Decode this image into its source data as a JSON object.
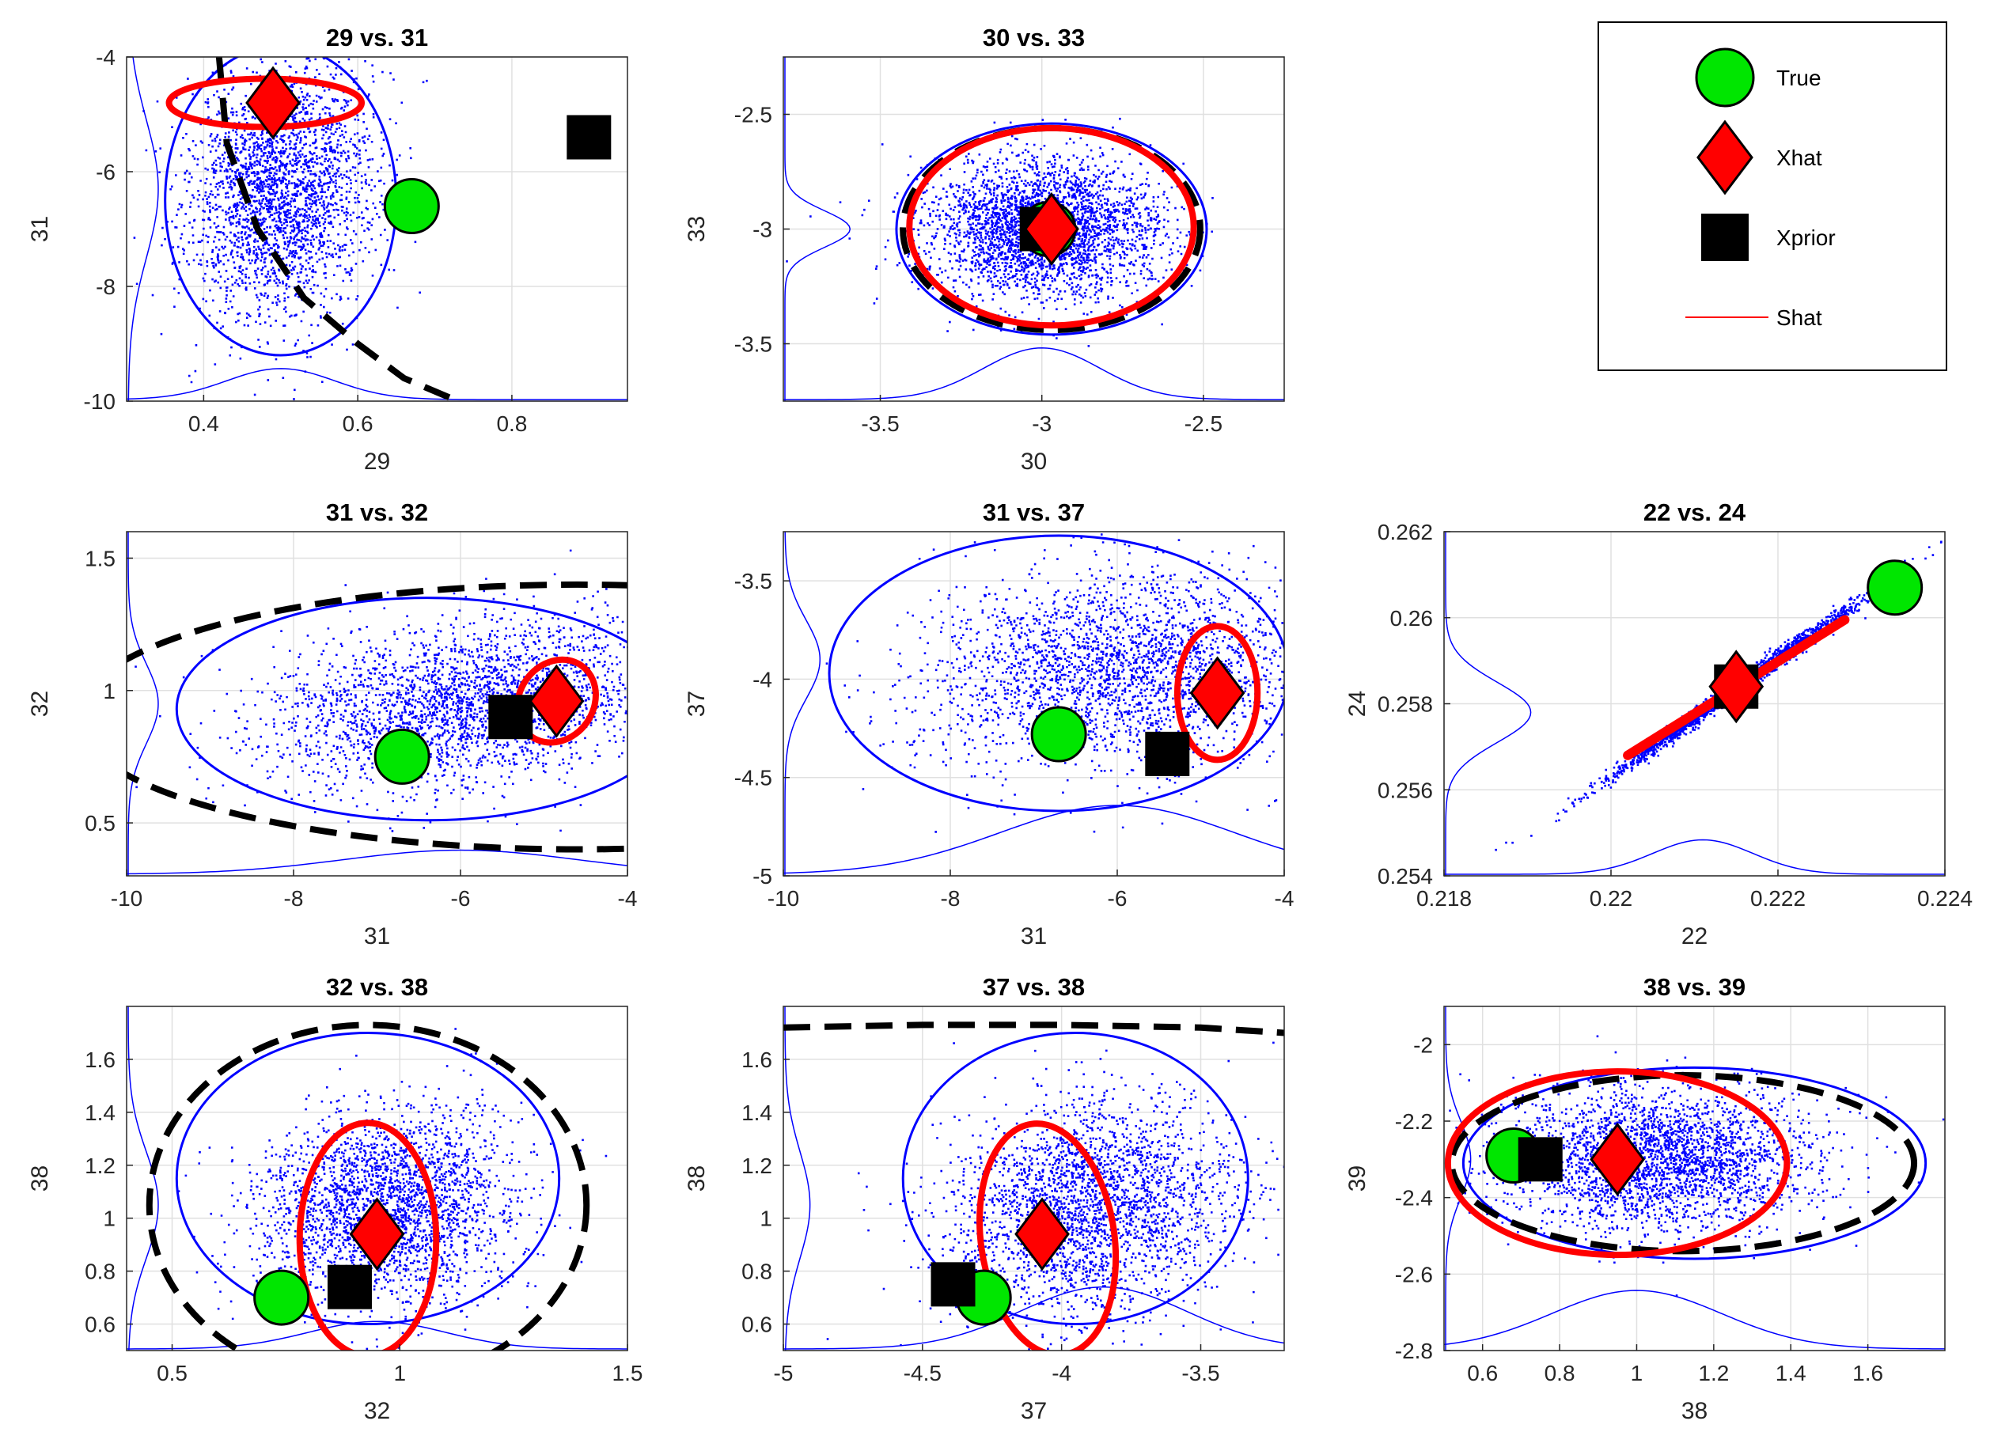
{
  "colors": {
    "true_marker": "#00e600",
    "xhat_marker": "#ff0000",
    "xprior_marker": "#000000",
    "scatter": "#0000ff",
    "shat": "#ff0000",
    "prior_contour": "#000000",
    "grid": "#e0e0e0"
  },
  "legend": {
    "entries": [
      {
        "label": "True",
        "marker": "circle"
      },
      {
        "label": "Xhat",
        "marker": "diamond"
      },
      {
        "label": "Xprior",
        "marker": "square"
      },
      {
        "label": "Shat",
        "marker": "line"
      }
    ]
  },
  "chart_data": [
    {
      "type": "scatter",
      "title": "29 vs. 31",
      "xlabel": "29",
      "ylabel": "31",
      "xlim": [
        0.3,
        0.95
      ],
      "ylim": [
        -10,
        -4
      ],
      "xticks": [
        0.4,
        0.6,
        0.8
      ],
      "xticklabels": [
        "0.4",
        "0.6",
        "0.8"
      ],
      "yticks": [
        -10,
        -8,
        -6,
        -4
      ],
      "yticklabels": [
        "-10",
        "-8",
        "-6",
        "-4"
      ],
      "grid": true,
      "points": {
        "true": [
          0.67,
          -6.6
        ],
        "xhat": [
          0.49,
          -4.8
        ],
        "xprior": [
          0.9,
          -5.4
        ]
      },
      "cloud": {
        "center": [
          0.5,
          -6.3
        ],
        "sd": [
          0.06,
          1.1
        ],
        "rho": 0.1,
        "n": 2600
      },
      "shat_ellipse": {
        "center": [
          0.48,
          -4.8
        ],
        "rx": 0.125,
        "ry": 0.42,
        "angle_deg": 0
      },
      "scatter_contour": {
        "center": [
          0.5,
          -6.5
        ],
        "rx": 0.15,
        "ry": 2.7,
        "angle_deg": 0
      },
      "prior_contour": {
        "shape": "curve",
        "x": [
          0.42,
          0.43,
          0.47,
          0.53,
          0.6,
          0.66,
          0.73
        ],
        "y": [
          -4.0,
          -5.5,
          -7.0,
          -8.2,
          -9.0,
          -9.6,
          -10.0
        ]
      },
      "x_marginal": {
        "center": 0.5,
        "sd": 0.07,
        "height": 0.09
      },
      "y_marginal": {
        "center": -6.3,
        "sd": 1.2,
        "height": 0.06
      }
    },
    {
      "type": "scatter",
      "title": "30 vs. 33",
      "xlabel": "30",
      "ylabel": "33",
      "xlim": [
        -3.8,
        -2.25
      ],
      "ylim": [
        -3.75,
        -2.25
      ],
      "xticks": [
        -3.5,
        -3,
        -2.5
      ],
      "xticklabels": [
        "-3.5",
        "-3",
        "-2.5"
      ],
      "yticks": [
        -3.5,
        -3,
        -2.5
      ],
      "yticklabels": [
        "-3.5",
        "-3",
        "-2.5"
      ],
      "grid": true,
      "points": {
        "true": [
          -2.98,
          -3.0
        ],
        "xhat": [
          -2.97,
          -3.0
        ],
        "xprior": [
          -3.0,
          -3.0
        ]
      },
      "cloud": {
        "center": [
          -3.0,
          -3.0
        ],
        "sd": [
          0.18,
          0.15
        ],
        "rho": 0.0,
        "n": 3000
      },
      "shat_ellipse": {
        "center": [
          -2.97,
          -2.99
        ],
        "rx": 0.44,
        "ry": 0.43,
        "angle_deg": 0
      },
      "scatter_contour": {
        "center": [
          -2.97,
          -3.0
        ],
        "rx": 0.48,
        "ry": 0.46,
        "angle_deg": 0
      },
      "prior_contour": {
        "shape": "ellipse",
        "center": [
          -2.97,
          -3.0
        ],
        "rx": 0.46,
        "ry": 0.44,
        "angle_deg": 0
      },
      "x_marginal": {
        "center": -3.0,
        "sd": 0.18,
        "height": 0.15
      },
      "y_marginal": {
        "center": -3.0,
        "sd": 0.08,
        "height": 0.13
      }
    },
    {
      "type": "scatter",
      "title": "31 vs. 32",
      "xlabel": "31",
      "ylabel": "32",
      "xlim": [
        -10,
        -4
      ],
      "ylim": [
        0.3,
        1.6
      ],
      "xticks": [
        -10,
        -8,
        -6,
        -4
      ],
      "xticklabels": [
        "-10",
        "-8",
        "-6",
        "-4"
      ],
      "yticks": [
        0.5,
        1,
        1.5
      ],
      "yticklabels": [
        "0.5",
        "1",
        "1.5"
      ],
      "grid": true,
      "points": {
        "true": [
          -6.7,
          0.75
        ],
        "xhat": [
          -4.85,
          0.96
        ],
        "xprior": [
          -5.4,
          0.9
        ]
      },
      "cloud": {
        "center": [
          -6.0,
          0.95
        ],
        "sd": [
          1.2,
          0.16
        ],
        "rho": 0.25,
        "n": 2600
      },
      "shat_ellipse": {
        "center": [
          -4.85,
          0.96
        ],
        "rx": 0.52,
        "ry": 0.14,
        "angle_deg": -55
      },
      "scatter_contour": {
        "center": [
          -6.4,
          0.93
        ],
        "rx": 3.0,
        "ry": 0.42,
        "angle_deg": 0
      },
      "prior_contour": {
        "shape": "ellipse",
        "center": [
          -4.6,
          0.9
        ],
        "rx": 6.0,
        "ry": 0.5,
        "angle_deg": 0
      },
      "x_marginal": {
        "center": -6.0,
        "sd": 1.4,
        "height": 0.07
      },
      "y_marginal": {
        "center": 0.95,
        "sd": 0.15,
        "height": 0.06
      }
    },
    {
      "type": "scatter",
      "title": "31 vs. 37",
      "xlabel": "31",
      "ylabel": "37",
      "xlim": [
        -10,
        -4
      ],
      "ylim": [
        -5,
        -3.25
      ],
      "xticks": [
        -10,
        -8,
        -6,
        -4
      ],
      "xticklabels": [
        "-10",
        "-8",
        "-6",
        "-4"
      ],
      "yticks": [
        -5,
        -4.5,
        -4,
        -3.5
      ],
      "yticklabels": [
        "-5",
        "-4.5",
        "-4",
        "-3.5"
      ],
      "grid": true,
      "points": {
        "true": [
          -6.7,
          -4.28
        ],
        "xhat": [
          -4.8,
          -4.07
        ],
        "xprior": [
          -5.4,
          -4.38
        ]
      },
      "cloud": {
        "center": [
          -6.0,
          -3.95
        ],
        "sd": [
          1.2,
          0.25
        ],
        "rho": 0.1,
        "n": 2600
      },
      "shat_ellipse": {
        "center": [
          -4.8,
          -4.07
        ],
        "rx": 0.48,
        "ry": 0.34,
        "angle_deg": 0
      },
      "scatter_contour": {
        "center": [
          -6.7,
          -3.97
        ],
        "rx": 2.75,
        "ry": 0.7,
        "angle_deg": 0
      },
      "prior_contour": null,
      "x_marginal": {
        "center": -6.0,
        "sd": 1.4,
        "height": 0.2
      },
      "y_marginal": {
        "center": -3.9,
        "sd": 0.2,
        "height": 0.07
      }
    },
    {
      "type": "scatter",
      "title": "22 vs. 24",
      "xlabel": "22",
      "ylabel": "24",
      "xlim": [
        0.218,
        0.224
      ],
      "ylim": [
        0.254,
        0.262
      ],
      "xticks": [
        0.218,
        0.22,
        0.222,
        0.224
      ],
      "xticklabels": [
        "0.218",
        "0.22",
        "0.222",
        "0.224"
      ],
      "yticks": [
        0.254,
        0.256,
        0.258,
        0.26,
        0.262
      ],
      "yticklabels": [
        "0.254",
        "0.256",
        "0.258",
        "0.26",
        "0.262"
      ],
      "grid": true,
      "points": {
        "true": [
          0.2234,
          0.2607
        ],
        "xhat": [
          0.2215,
          0.2584
        ],
        "xprior": [
          0.2215,
          0.2584
        ]
      },
      "cloud": {
        "center": [
          0.2215,
          0.2584
        ],
        "sd": [
          0.0008,
          0.0011
        ],
        "rho": 0.995,
        "n": 2000
      },
      "shat_ellipse": {
        "center": [
          0.22145,
          0.25835
        ],
        "rx": 0.0015,
        "ry": 0.0016,
        "angle_deg": 0,
        "line": [
          [
            0.2202,
            0.2568
          ],
          [
            0.2228,
            0.25995
          ]
        ]
      },
      "scatter_contour": null,
      "prior_contour": null,
      "x_marginal": {
        "center": 0.2211,
        "sd": 0.0006,
        "height": 0.1
      },
      "y_marginal": {
        "center": 0.2578,
        "sd": 0.0007,
        "height": 0.17
      }
    },
    {
      "type": "scatter",
      "title": "32 vs. 38",
      "xlabel": "32",
      "ylabel": "38",
      "xlim": [
        0.4,
        1.5
      ],
      "ylim": [
        0.5,
        1.8
      ],
      "xticks": [
        0.5,
        1,
        1.5
      ],
      "xticklabels": [
        "0.5",
        "1",
        "1.5"
      ],
      "yticks": [
        0.6,
        0.8,
        1,
        1.2,
        1.4,
        1.6
      ],
      "yticklabels": [
        "0.6",
        "0.8",
        "1",
        "1.2",
        "1.4",
        "1.6"
      ],
      "grid": true,
      "points": {
        "true": [
          0.74,
          0.7
        ],
        "xhat": [
          0.95,
          0.94
        ],
        "xprior": [
          0.89,
          0.74
        ]
      },
      "cloud": {
        "center": [
          0.97,
          1.05
        ],
        "sd": [
          0.14,
          0.18
        ],
        "rho": 0.1,
        "n": 2600
      },
      "shat_ellipse": {
        "center": [
          0.93,
          0.92
        ],
        "rx": 0.15,
        "ry": 0.44,
        "angle_deg": 0
      },
      "scatter_contour": {
        "center": [
          0.93,
          1.15
        ],
        "rx": 0.42,
        "ry": 0.55,
        "angle_deg": 0
      },
      "prior_contour": {
        "shape": "ellipse",
        "center": [
          0.93,
          1.05
        ],
        "rx": 0.48,
        "ry": 0.68,
        "angle_deg": 0
      },
      "x_marginal": {
        "center": 0.95,
        "sd": 0.15,
        "height": 0.08
      },
      "y_marginal": {
        "center": 1.05,
        "sd": 0.2,
        "height": 0.06
      }
    },
    {
      "type": "scatter",
      "title": "37 vs. 38",
      "xlabel": "37",
      "ylabel": "38",
      "xlim": [
        -5,
        -3.2
      ],
      "ylim": [
        0.5,
        1.8
      ],
      "xticks": [
        -5,
        -4.5,
        -4,
        -3.5
      ],
      "xticklabels": [
        "-5",
        "-4.5",
        "-4",
        "-3.5"
      ],
      "yticks": [
        0.6,
        0.8,
        1,
        1.2,
        1.4,
        1.6
      ],
      "yticklabels": [
        "0.6",
        "0.8",
        "1",
        "1.2",
        "1.4",
        "1.6"
      ],
      "grid": true,
      "points": {
        "true": [
          -4.28,
          0.7
        ],
        "xhat": [
          -4.07,
          0.94
        ],
        "xprior": [
          -4.39,
          0.75
        ]
      },
      "cloud": {
        "center": [
          -3.9,
          1.05
        ],
        "sd": [
          0.25,
          0.2
        ],
        "rho": 0.15,
        "n": 2600
      },
      "shat_ellipse": {
        "center": [
          -4.05,
          0.92
        ],
        "rx": 0.24,
        "ry": 0.44,
        "angle_deg": -8
      },
      "scatter_contour": {
        "center": [
          -3.95,
          1.15
        ],
        "rx": 0.62,
        "ry": 0.55,
        "angle_deg": 0
      },
      "prior_contour": {
        "shape": "curve",
        "x": [
          -5.0,
          -4.5,
          -4.0,
          -3.5,
          -3.2
        ],
        "y": [
          1.72,
          1.73,
          1.73,
          1.72,
          1.7
        ]
      },
      "x_marginal": {
        "center": -3.85,
        "sd": 0.3,
        "height": 0.18
      },
      "y_marginal": {
        "center": 1.05,
        "sd": 0.2,
        "height": 0.05
      }
    },
    {
      "type": "scatter",
      "title": "38 vs. 39",
      "xlabel": "38",
      "ylabel": "39",
      "xlim": [
        0.5,
        1.8
      ],
      "ylim": [
        -2.8,
        -1.9
      ],
      "xticks": [
        0.6,
        0.8,
        1,
        1.2,
        1.4,
        1.6
      ],
      "xticklabels": [
        "0.6",
        "0.8",
        "1",
        "1.2",
        "1.4",
        "1.6"
      ],
      "yticks": [
        -2.8,
        -2.6,
        -2.4,
        -2.2,
        -2
      ],
      "yticklabels": [
        "-2.8",
        "-2.6",
        "-2.4",
        "-2.2",
        "-2"
      ],
      "grid": true,
      "points": {
        "true": [
          0.68,
          -2.29
        ],
        "xhat": [
          0.95,
          -2.3
        ],
        "xprior": [
          0.75,
          -2.3
        ]
      },
      "cloud": {
        "center": [
          1.05,
          -2.3
        ],
        "sd": [
          0.2,
          0.09
        ],
        "rho": 0.0,
        "n": 2800
      },
      "shat_ellipse": {
        "center": [
          0.95,
          -2.31
        ],
        "rx": 0.44,
        "ry": 0.24,
        "angle_deg": 0
      },
      "scatter_contour": {
        "center": [
          1.15,
          -2.31
        ],
        "rx": 0.6,
        "ry": 0.25,
        "angle_deg": 0
      },
      "prior_contour": {
        "shape": "ellipse",
        "center": [
          1.12,
          -2.31
        ],
        "rx": 0.6,
        "ry": 0.23,
        "angle_deg": 0
      },
      "x_marginal": {
        "center": 1.0,
        "sd": 0.22,
        "height": 0.17
      },
      "y_marginal": {
        "center": -2.3,
        "sd": 0.1,
        "height": 0.05
      }
    }
  ]
}
